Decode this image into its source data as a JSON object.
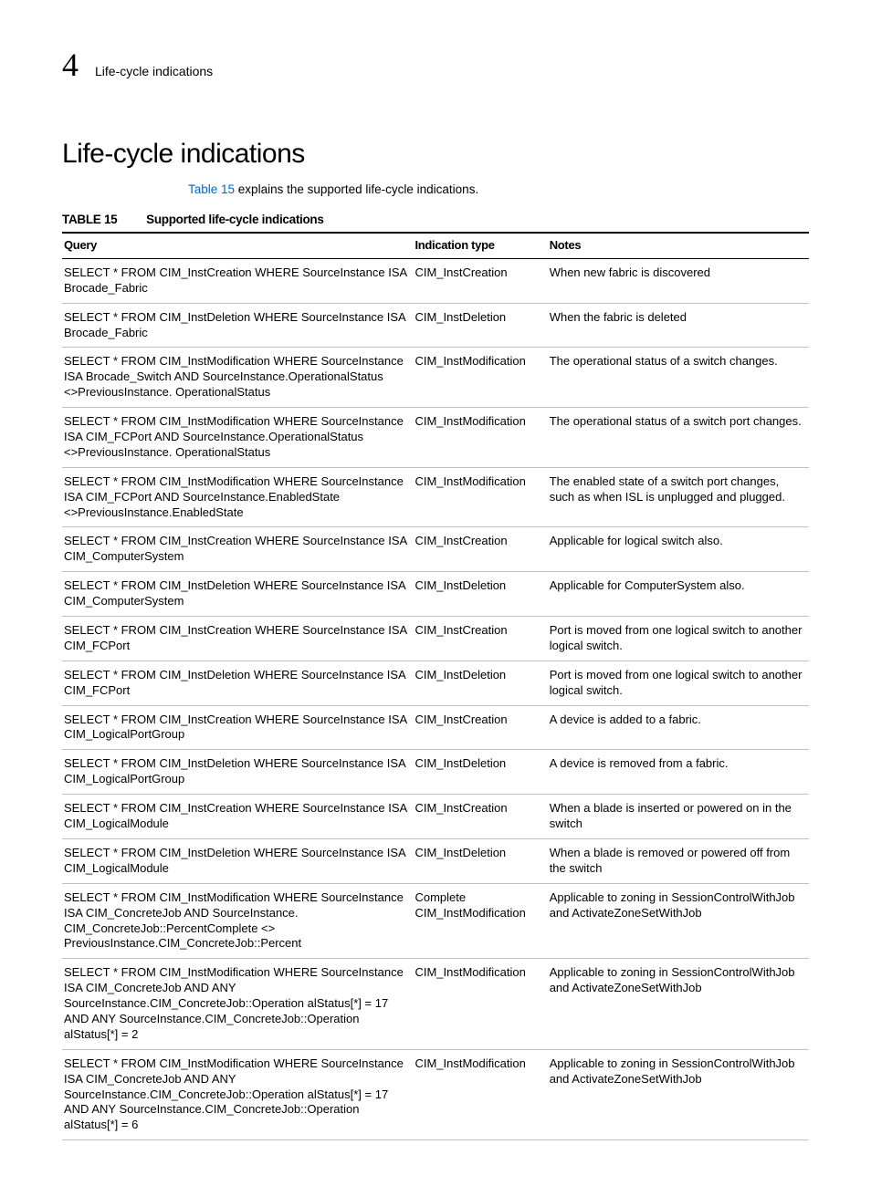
{
  "header": {
    "chapter_number": "4",
    "chapter_title": "Life-cycle indications"
  },
  "heading": "Life-cycle indications",
  "intro": {
    "link_text": "Table 15",
    "after_link": " explains the supported life-cycle indications."
  },
  "table": {
    "label": "TABLE 15",
    "title": "Supported life-cycle indications",
    "columns": [
      "Query",
      "Indication type",
      "Notes"
    ],
    "rows": [
      [
        "SELECT * FROM CIM_InstCreation WHERE SourceInstance ISA Brocade_Fabric",
        "CIM_InstCreation",
        "When new fabric is discovered"
      ],
      [
        "SELECT * FROM CIM_InstDeletion WHERE SourceInstance ISA Brocade_Fabric",
        "CIM_InstDeletion",
        "When the fabric is deleted"
      ],
      [
        "SELECT * FROM CIM_InstModification WHERE SourceInstance ISA Brocade_Switch AND SourceInstance.OperationalStatus <>PreviousInstance. OperationalStatus",
        "CIM_InstModification",
        "The operational status of a switch changes."
      ],
      [
        "SELECT * FROM CIM_InstModification WHERE SourceInstance ISA CIM_FCPort AND SourceInstance.OperationalStatus <>PreviousInstance. OperationalStatus",
        "CIM_InstModification",
        "The operational status of a switch port changes."
      ],
      [
        "SELECT * FROM CIM_InstModification WHERE SourceInstance ISA CIM_FCPort AND SourceInstance.EnabledState <>PreviousInstance.EnabledState",
        "CIM_InstModification",
        "The enabled state of a switch port changes, such as when ISL is unplugged and plugged."
      ],
      [
        "SELECT * FROM CIM_InstCreation WHERE SourceInstance ISA CIM_ComputerSystem",
        "CIM_InstCreation",
        "Applicable for logical switch also."
      ],
      [
        "SELECT * FROM CIM_InstDeletion WHERE SourceInstance ISA CIM_ComputerSystem",
        "CIM_InstDeletion",
        "Applicable for ComputerSystem also."
      ],
      [
        "SELECT * FROM CIM_InstCreation WHERE SourceInstance ISA CIM_FCPort",
        "CIM_InstCreation",
        "Port is moved from one logical switch to another logical switch."
      ],
      [
        "SELECT * FROM CIM_InstDeletion WHERE SourceInstance ISA CIM_FCPort",
        "CIM_InstDeletion",
        "Port is moved from one logical switch to another logical switch."
      ],
      [
        "SELECT * FROM CIM_InstCreation WHERE SourceInstance ISA CIM_LogicalPortGroup",
        "CIM_InstCreation",
        "A device is added to a fabric."
      ],
      [
        "SELECT * FROM CIM_InstDeletion WHERE SourceInstance ISA CIM_LogicalPortGroup",
        "CIM_InstDeletion",
        "A device is removed from a fabric."
      ],
      [
        "SELECT * FROM CIM_InstCreation WHERE SourceInstance ISA CIM_LogicalModule",
        "CIM_InstCreation",
        "When a blade is inserted or powered on in the switch"
      ],
      [
        "SELECT * FROM CIM_InstDeletion WHERE SourceInstance ISA CIM_LogicalModule",
        "CIM_InstDeletion",
        "When a blade is removed or powered off from the switch"
      ],
      [
        "SELECT * FROM CIM_InstModification WHERE SourceInstance ISA CIM_ConcreteJob AND SourceInstance. CIM_ConcreteJob::PercentComplete <> PreviousInstance.CIM_ConcreteJob::Percent",
        "Complete CIM_InstModification",
        "Applicable to zoning in SessionControlWithJob and ActivateZoneSetWithJob"
      ],
      [
        "SELECT * FROM CIM_InstModification WHERE SourceInstance ISA CIM_ConcreteJob AND ANY SourceInstance.CIM_ConcreteJob::Operation alStatus[*] = 17 AND ANY SourceInstance.CIM_ConcreteJob::Operation alStatus[*] = 2",
        "CIM_InstModification",
        "Applicable to zoning in SessionControlWithJob and ActivateZoneSetWithJob"
      ],
      [
        "SELECT * FROM CIM_InstModification WHERE SourceInstance ISA CIM_ConcreteJob AND ANY SourceInstance.CIM_ConcreteJob::Operation alStatus[*] = 17 AND ANY SourceInstance.CIM_ConcreteJob::Operation alStatus[*] = 6",
        "CIM_InstModification",
        "Applicable to zoning in SessionControlWithJob and ActivateZoneSetWithJob"
      ]
    ]
  }
}
